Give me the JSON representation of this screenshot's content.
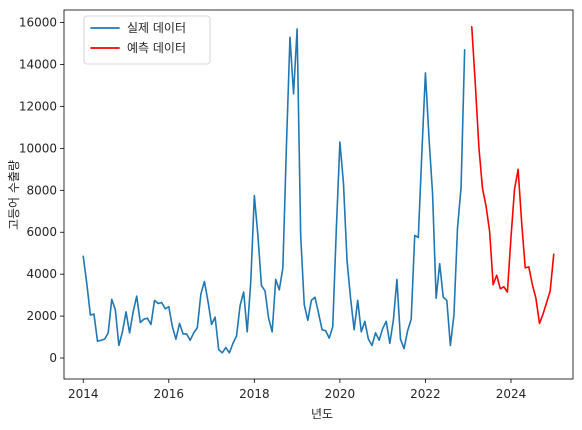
{
  "chart_data": {
    "type": "line",
    "title": "",
    "xlabel": "년도",
    "ylabel": "고등어 수출량",
    "xlim": [
      2013.55,
      2025.45
    ],
    "ylim": [
      -1000,
      16600
    ],
    "grid": false,
    "legend_position": "top-left",
    "x_ticks": [
      2014,
      2016,
      2018,
      2020,
      2022,
      2024
    ],
    "x_tick_labels": [
      "2014",
      "2016",
      "2018",
      "2020",
      "2022",
      "2024"
    ],
    "y_ticks": [
      0,
      2000,
      4000,
      6000,
      8000,
      10000,
      12000,
      14000,
      16000
    ],
    "y_tick_labels": [
      "0",
      "2000",
      "4000",
      "6000",
      "8000",
      "10000",
      "12000",
      "14000",
      "16000"
    ],
    "series": [
      {
        "name": "실제 데이터",
        "color": "#1f77b4",
        "x": [
          "2014-01",
          "2014-02",
          "2014-03",
          "2014-04",
          "2014-05",
          "2014-06",
          "2014-07",
          "2014-08",
          "2014-09",
          "2014-10",
          "2014-11",
          "2014-12",
          "2015-01",
          "2015-02",
          "2015-03",
          "2015-04",
          "2015-05",
          "2015-06",
          "2015-07",
          "2015-08",
          "2015-09",
          "2015-10",
          "2015-11",
          "2015-12",
          "2016-01",
          "2016-02",
          "2016-03",
          "2016-04",
          "2016-05",
          "2016-06",
          "2016-07",
          "2016-08",
          "2016-09",
          "2016-10",
          "2016-11",
          "2016-12",
          "2017-01",
          "2017-02",
          "2017-03",
          "2017-04",
          "2017-05",
          "2017-06",
          "2017-07",
          "2017-08",
          "2017-09",
          "2017-10",
          "2017-11",
          "2017-12",
          "2018-01",
          "2018-02",
          "2018-03",
          "2018-04",
          "2018-05",
          "2018-06",
          "2018-07",
          "2018-08",
          "2018-09",
          "2018-10",
          "2018-11",
          "2018-12",
          "2019-01",
          "2019-02",
          "2019-03",
          "2019-04",
          "2019-05",
          "2019-06",
          "2019-07",
          "2019-08",
          "2019-09",
          "2019-10",
          "2019-11",
          "2019-12",
          "2020-01",
          "2020-02",
          "2020-03",
          "2020-04",
          "2020-05",
          "2020-06",
          "2020-07",
          "2020-08",
          "2020-09",
          "2020-10",
          "2020-11",
          "2020-12",
          "2021-01",
          "2021-02",
          "2021-03",
          "2021-04",
          "2021-05",
          "2021-06",
          "2021-07",
          "2021-08",
          "2021-09",
          "2021-10",
          "2021-11",
          "2021-12",
          "2022-01",
          "2022-02",
          "2022-03",
          "2022-04",
          "2022-05",
          "2022-06",
          "2022-07",
          "2022-08",
          "2022-09",
          "2022-10",
          "2022-11",
          "2022-12"
        ],
        "values": [
          4850,
          3550,
          2050,
          2100,
          800,
          850,
          900,
          1200,
          2800,
          2300,
          600,
          1250,
          2200,
          1200,
          2200,
          2950,
          1700,
          1850,
          1900,
          1600,
          2750,
          2600,
          2650,
          2350,
          2450,
          1500,
          900,
          1650,
          1150,
          1150,
          850,
          1200,
          1450,
          3050,
          3650,
          2700,
          1600,
          1950,
          400,
          250,
          500,
          250,
          700,
          1050,
          2500,
          3150,
          1250,
          3650,
          7750,
          5850,
          3450,
          3200,
          1900,
          1250,
          3750,
          3250,
          4300,
          10100,
          15300,
          12600,
          15700,
          5850,
          2550,
          1800,
          2750,
          2900,
          2150,
          1350,
          1300,
          950,
          1500,
          6150,
          10300,
          8350,
          4650,
          2850,
          1350,
          2750,
          1250,
          1750,
          900,
          600,
          1200,
          850,
          1400,
          1750,
          700,
          1800,
          3750,
          900,
          450,
          1300,
          1850,
          5850,
          5750,
          9800,
          13600,
          10500,
          7850,
          2850,
          4500,
          2900,
          2750,
          600,
          2050,
          6200,
          8150,
          14700
        ]
      },
      {
        "name": "예측 데이터",
        "color": "#ff0000",
        "x": [
          "2023-02",
          "2023-03",
          "2023-04",
          "2023-05",
          "2023-06",
          "2023-07",
          "2023-08",
          "2023-09",
          "2023-10",
          "2023-11",
          "2023-12",
          "2024-01",
          "2024-02",
          "2024-03",
          "2024-04",
          "2024-05",
          "2024-06",
          "2024-07",
          "2024-08",
          "2024-09",
          "2024-10",
          "2024-11",
          "2024-12",
          "2025-01"
        ],
        "values": [
          15800,
          13050,
          10050,
          8100,
          7250,
          6050,
          3500,
          3950,
          3300,
          3400,
          3150,
          5750,
          8050,
          9000,
          6450,
          4300,
          4350,
          3500,
          2850,
          1650,
          2100,
          2650,
          3200,
          4950
        ]
      }
    ]
  }
}
